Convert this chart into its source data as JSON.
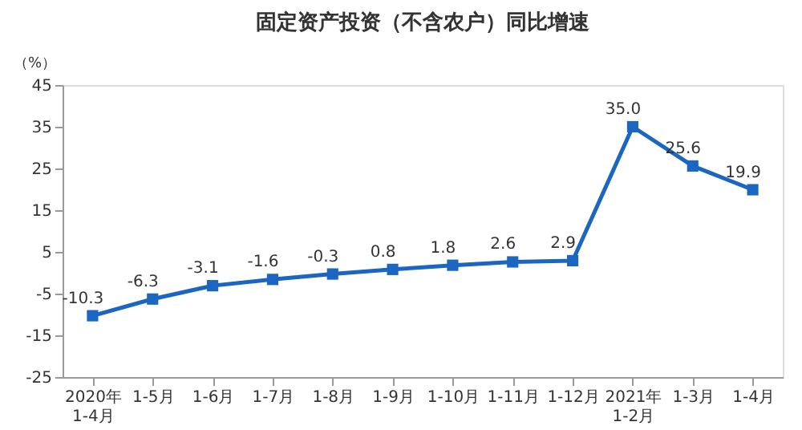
{
  "chart_data": {
    "type": "line",
    "title": "固定资产投资（不含农户）同比增速",
    "ylabel": "（%）",
    "categories": [
      "2020年\n1-4月",
      "1-5月",
      "1-6月",
      "1-7月",
      "1-8月",
      "1-9月",
      "1-10月",
      "1-11月",
      "1-12月",
      "2021年\n1-2月",
      "1-3月",
      "1-4月"
    ],
    "series": [
      {
        "color": "#1a66c0",
        "values": [
          -10.3,
          -6.3,
          -3.1,
          -1.6,
          -0.3,
          0.8,
          1.8,
          2.6,
          2.9,
          35.0,
          25.6,
          19.9
        ],
        "value_labels": [
          "-10.3",
          "-6.3",
          "-3.1",
          "-1.6",
          "-0.3",
          "0.8",
          "1.8",
          "2.6",
          "2.9",
          "35.0",
          "25.6",
          "19.9"
        ]
      }
    ],
    "ylim": [
      -25,
      45
    ],
    "yticks": [
      -25,
      -15,
      -5,
      5,
      15,
      25,
      35,
      45
    ],
    "grid": false,
    "marker": "square",
    "line_style": "solid"
  }
}
